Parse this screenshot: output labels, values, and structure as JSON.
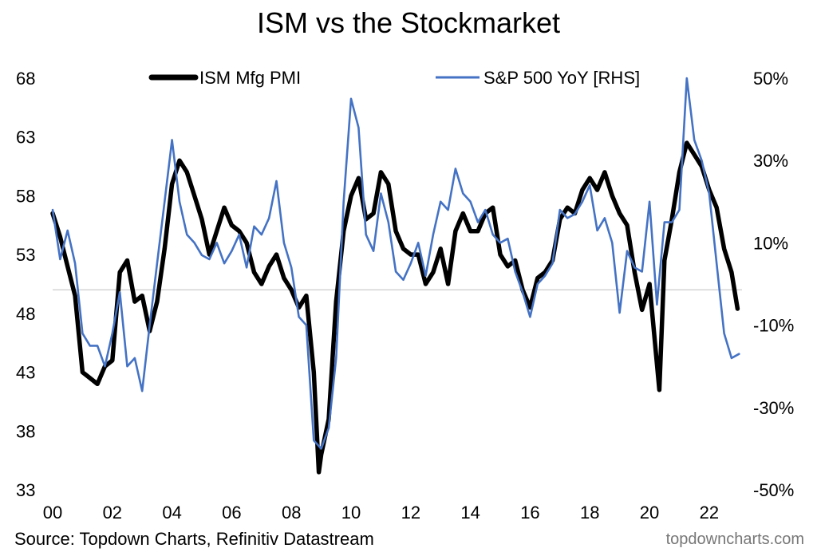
{
  "title": "ISM vs the Stockmarket",
  "source": "Source: Topdown Charts, Refinitiv Datastream",
  "brand": "topdowncharts.com",
  "chart_data": {
    "type": "line",
    "title": "ISM vs the Stockmarket",
    "legend_position": "top",
    "grid": false,
    "x_range": [
      2000,
      2023.1
    ],
    "x_ticks": [
      2000,
      2002,
      2004,
      2006,
      2008,
      2010,
      2012,
      2014,
      2016,
      2018,
      2020,
      2022
    ],
    "x_tick_labels": [
      "00",
      "02",
      "04",
      "06",
      "08",
      "10",
      "12",
      "14",
      "16",
      "18",
      "20",
      "22"
    ],
    "y_left": {
      "min": 33,
      "max": 68,
      "ticks": [
        33,
        38,
        43,
        48,
        53,
        58,
        63,
        68
      ],
      "tick_labels": [
        "33",
        "38",
        "43",
        "48",
        "53",
        "58",
        "63",
        "68"
      ]
    },
    "y_right": {
      "min": -50,
      "max": 50,
      "ticks": [
        -50,
        -30,
        -10,
        10,
        30,
        50
      ],
      "tick_labels": [
        "-50%",
        "-30%",
        "-10%",
        "10%",
        "30%",
        "50%"
      ]
    },
    "reference_line": {
      "axis": "left",
      "value": 50,
      "color": "#cccccc"
    },
    "series": [
      {
        "name": "ISM Mfg PMI",
        "axis": "left",
        "color": "#000000",
        "x": [
          2000.0,
          2000.25,
          2000.5,
          2000.75,
          2001.0,
          2001.25,
          2001.5,
          2001.75,
          2002.0,
          2002.25,
          2002.5,
          2002.75,
          2003.0,
          2003.25,
          2003.5,
          2003.75,
          2004.0,
          2004.25,
          2004.5,
          2004.75,
          2005.0,
          2005.25,
          2005.5,
          2005.75,
          2006.0,
          2006.25,
          2006.5,
          2006.75,
          2007.0,
          2007.25,
          2007.5,
          2007.75,
          2008.0,
          2008.25,
          2008.5,
          2008.75,
          2008.92,
          2009.0,
          2009.25,
          2009.5,
          2009.75,
          2010.0,
          2010.25,
          2010.5,
          2010.75,
          2011.0,
          2011.25,
          2011.5,
          2011.75,
          2012.0,
          2012.25,
          2012.5,
          2012.75,
          2013.0,
          2013.25,
          2013.5,
          2013.75,
          2014.0,
          2014.25,
          2014.5,
          2014.75,
          2015.0,
          2015.25,
          2015.5,
          2015.75,
          2016.0,
          2016.25,
          2016.5,
          2016.75,
          2017.0,
          2017.25,
          2017.5,
          2017.75,
          2018.0,
          2018.25,
          2018.5,
          2018.75,
          2019.0,
          2019.25,
          2019.5,
          2019.75,
          2020.0,
          2020.33,
          2020.5,
          2020.75,
          2021.0,
          2021.25,
          2021.5,
          2021.75,
          2022.0,
          2022.25,
          2022.5,
          2022.75,
          2022.95
        ],
        "values": [
          56.5,
          54.5,
          52.0,
          49.5,
          43.0,
          42.5,
          42.0,
          43.5,
          44.0,
          51.5,
          52.5,
          49.0,
          49.5,
          46.5,
          49.0,
          53.5,
          59.0,
          61.0,
          60.0,
          58.0,
          56.0,
          53.0,
          55.0,
          57.0,
          55.5,
          55.0,
          54.0,
          51.5,
          50.5,
          52.0,
          53.0,
          51.0,
          50.0,
          48.5,
          49.5,
          43.0,
          34.5,
          36.0,
          39.0,
          49.0,
          55.0,
          58.0,
          59.5,
          56.0,
          56.5,
          60.0,
          59.0,
          55.0,
          53.5,
          53.0,
          53.0,
          50.5,
          51.5,
          53.5,
          50.5,
          55.0,
          56.5,
          55.0,
          55.0,
          56.5,
          57.0,
          53.0,
          52.0,
          52.5,
          50.0,
          48.5,
          51.0,
          51.5,
          52.5,
          56.0,
          57.0,
          56.5,
          58.5,
          59.5,
          58.5,
          60.0,
          58.0,
          56.5,
          55.5,
          51.5,
          48.3,
          50.5,
          41.5,
          52.5,
          56.0,
          60.0,
          62.5,
          61.5,
          60.5,
          58.5,
          57.0,
          53.5,
          51.5,
          48.4
        ]
      },
      {
        "name": "S&P 500 YoY [RHS]",
        "axis": "right",
        "color": "#4472c4",
        "x": [
          2000.0,
          2000.25,
          2000.5,
          2000.75,
          2001.0,
          2001.25,
          2001.5,
          2001.75,
          2002.0,
          2002.25,
          2002.5,
          2002.75,
          2003.0,
          2003.25,
          2003.5,
          2003.75,
          2004.0,
          2004.25,
          2004.5,
          2004.75,
          2005.0,
          2005.25,
          2005.5,
          2005.75,
          2006.0,
          2006.25,
          2006.5,
          2006.75,
          2007.0,
          2007.25,
          2007.5,
          2007.75,
          2008.0,
          2008.25,
          2008.5,
          2008.75,
          2009.0,
          2009.25,
          2009.5,
          2009.75,
          2010.0,
          2010.25,
          2010.5,
          2010.75,
          2011.0,
          2011.25,
          2011.5,
          2011.75,
          2012.0,
          2012.25,
          2012.5,
          2012.75,
          2013.0,
          2013.25,
          2013.5,
          2013.75,
          2014.0,
          2014.25,
          2014.5,
          2014.75,
          2015.0,
          2015.25,
          2015.5,
          2015.75,
          2016.0,
          2016.25,
          2016.5,
          2016.75,
          2017.0,
          2017.25,
          2017.5,
          2017.75,
          2018.0,
          2018.25,
          2018.5,
          2018.75,
          2019.0,
          2019.25,
          2019.5,
          2019.75,
          2020.0,
          2020.25,
          2020.5,
          2020.75,
          2021.0,
          2021.25,
          2021.5,
          2021.75,
          2022.0,
          2022.25,
          2022.5,
          2022.75,
          2023.0
        ],
        "values": [
          18.0,
          6.0,
          13.0,
          5.0,
          -12.0,
          -15.0,
          -15.0,
          -20.0,
          -12.0,
          -2.0,
          -20.0,
          -18.0,
          -26.0,
          -10.0,
          5.0,
          20.0,
          35.0,
          20.0,
          12.0,
          10.0,
          7.0,
          6.0,
          10.0,
          5.0,
          8.0,
          12.0,
          4.0,
          14.0,
          12.0,
          16.0,
          25.0,
          10.0,
          4.0,
          -8.0,
          -10.0,
          -38.0,
          -40.0,
          -35.0,
          -18.0,
          20.0,
          45.0,
          38.0,
          12.0,
          8.0,
          22.0,
          15.0,
          3.0,
          1.0,
          5.0,
          10.0,
          2.0,
          12.0,
          20.0,
          18.0,
          28.0,
          22.0,
          20.0,
          15.0,
          18.0,
          12.0,
          10.0,
          11.0,
          3.0,
          -2.0,
          -8.0,
          0.0,
          2.0,
          5.0,
          18.0,
          16.0,
          17.0,
          20.0,
          24.0,
          13.0,
          16.0,
          10.0,
          -7.0,
          8.0,
          4.0,
          3.0,
          20.0,
          -5.0,
          15.0,
          15.0,
          18.0,
          50.0,
          35.0,
          30.0,
          22.0,
          5.0,
          -12.0,
          -18.0,
          -17.0
        ]
      }
    ]
  }
}
